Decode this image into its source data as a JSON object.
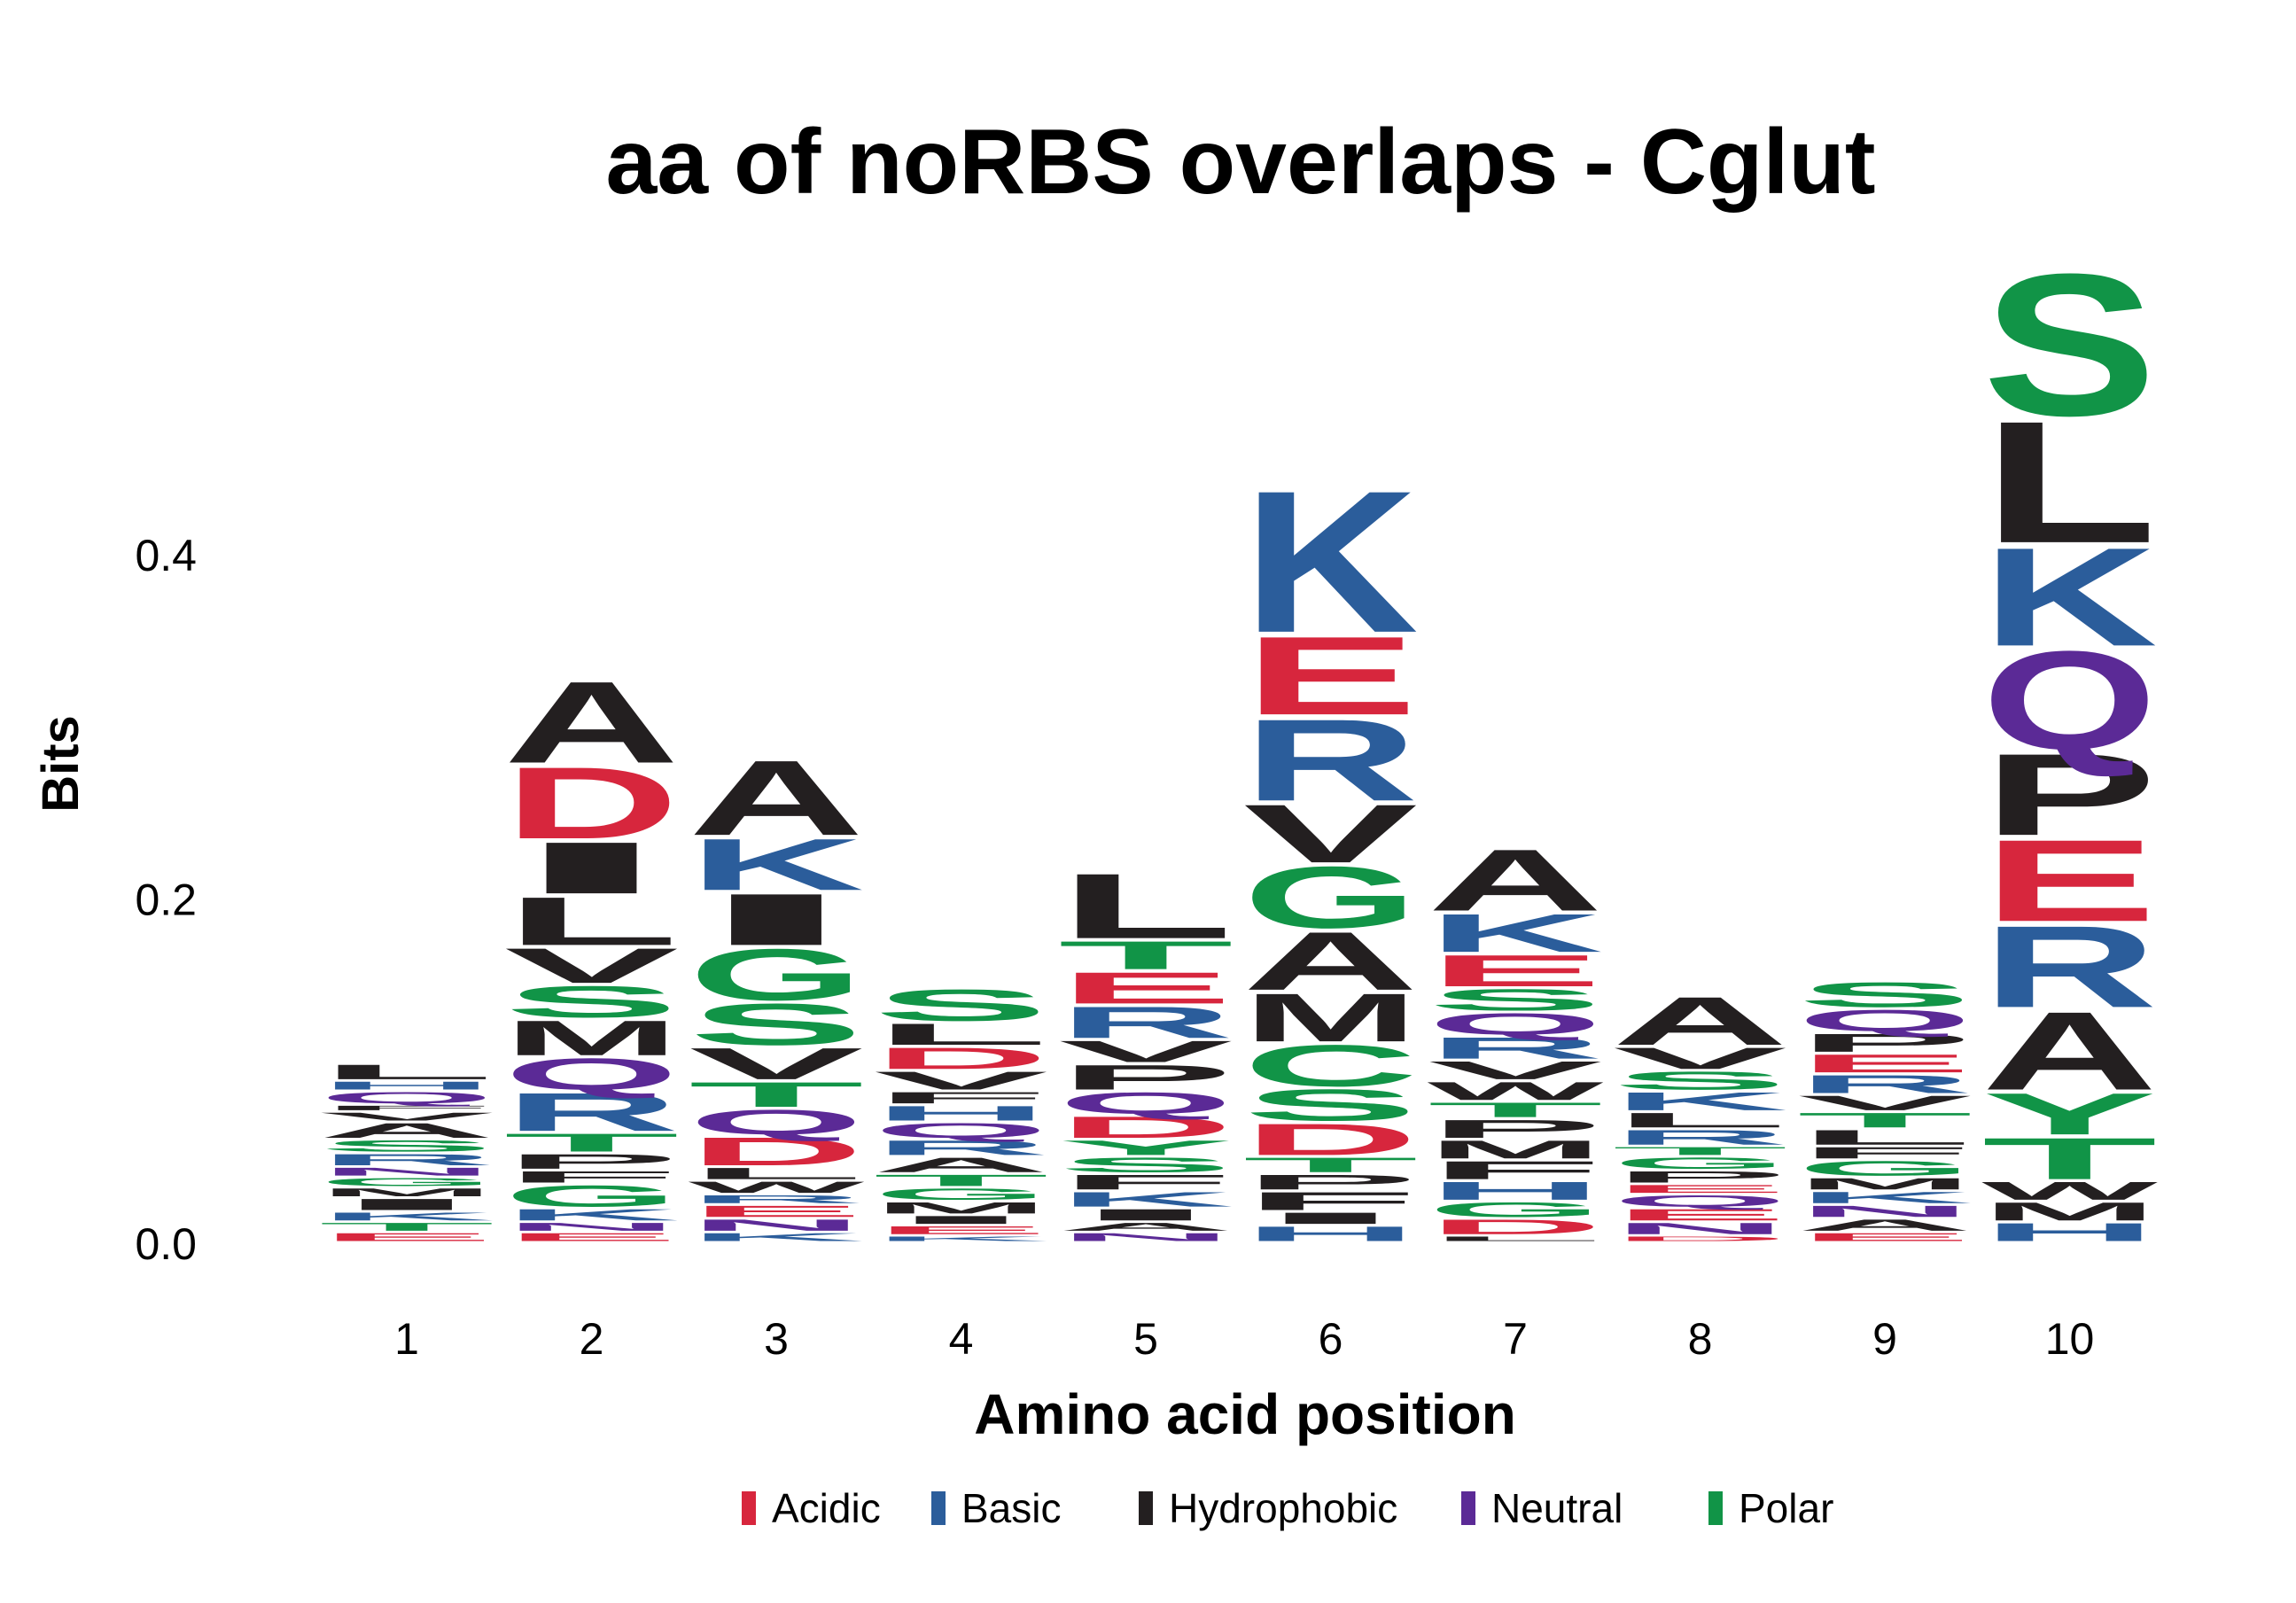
{
  "chart_data": {
    "type": "sequence-logo",
    "title": "aa of noRBS overlaps - Cglut",
    "xlabel": "Amino acid position",
    "ylabel": "Bits",
    "x": [
      1,
      2,
      3,
      4,
      5,
      6,
      7,
      8,
      9,
      10
    ],
    "y_ticks": [
      "0.0",
      "0.2",
      "0.4"
    ],
    "ylim": [
      0,
      0.55
    ],
    "legend_placement": "bottom",
    "legend": [
      {
        "name": "Acidic",
        "color": "#d7263d"
      },
      {
        "name": "Basic",
        "color": "#2b5d9b"
      },
      {
        "name": "Hydrophobic",
        "color": "#231f20"
      },
      {
        "name": "Neutral",
        "color": "#5b2a96"
      },
      {
        "name": "Polar",
        "color": "#119447"
      }
    ],
    "class_colors": {
      "acidic": "#d7263d",
      "basic": "#2b5d9b",
      "hydrophobic": "#231f20",
      "neutral": "#5b2a96",
      "polar": "#119447"
    },
    "positions": [
      {
        "pos": 1,
        "stack": [
          {
            "aa": "E",
            "bits": 0.006
          },
          {
            "aa": "T",
            "bits": 0.006
          },
          {
            "aa": "K",
            "bits": 0.006
          },
          {
            "aa": "I",
            "bits": 0.008
          },
          {
            "aa": "M",
            "bits": 0.006
          },
          {
            "aa": "G",
            "bits": 0.006
          },
          {
            "aa": "N",
            "bits": 0.006
          },
          {
            "aa": "R",
            "bits": 0.008
          },
          {
            "aa": "S",
            "bits": 0.008
          },
          {
            "aa": "A",
            "bits": 0.01
          },
          {
            "aa": "V",
            "bits": 0.006
          },
          {
            "aa": "F",
            "bits": 0.004
          },
          {
            "aa": "Q",
            "bits": 0.008
          },
          {
            "aa": "H",
            "bits": 0.006
          },
          {
            "aa": "L",
            "bits": 0.01
          }
        ]
      },
      {
        "pos": 2,
        "stack": [
          {
            "aa": "E",
            "bits": 0.006
          },
          {
            "aa": "N",
            "bits": 0.006
          },
          {
            "aa": "K",
            "bits": 0.008
          },
          {
            "aa": "G",
            "bits": 0.014
          },
          {
            "aa": "F",
            "bits": 0.008
          },
          {
            "aa": "P",
            "bits": 0.01
          },
          {
            "aa": "T",
            "bits": 0.012
          },
          {
            "aa": "R",
            "bits": 0.024
          },
          {
            "aa": "Q",
            "bits": 0.02
          },
          {
            "aa": "M",
            "bits": 0.022
          },
          {
            "aa": "S",
            "bits": 0.02
          },
          {
            "aa": "V",
            "bits": 0.022
          },
          {
            "aa": "L",
            "bits": 0.03
          },
          {
            "aa": "I",
            "bits": 0.032
          },
          {
            "aa": "D",
            "bits": 0.044
          },
          {
            "aa": "A",
            "bits": 0.05
          }
        ]
      },
      {
        "pos": 3,
        "stack": [
          {
            "aa": "K",
            "bits": 0.006
          },
          {
            "aa": "N",
            "bits": 0.008
          },
          {
            "aa": "E",
            "bits": 0.008
          },
          {
            "aa": "R",
            "bits": 0.006
          },
          {
            "aa": "W",
            "bits": 0.008
          },
          {
            "aa": "L",
            "bits": 0.008
          },
          {
            "aa": "D",
            "bits": 0.018
          },
          {
            "aa": "Q",
            "bits": 0.016
          },
          {
            "aa": "T",
            "bits": 0.016
          },
          {
            "aa": "V",
            "bits": 0.02
          },
          {
            "aa": "S",
            "bits": 0.026
          },
          {
            "aa": "G",
            "bits": 0.032
          },
          {
            "aa": "I",
            "bits": 0.032
          },
          {
            "aa": "K",
            "bits": 0.032
          },
          {
            "aa": "A",
            "bits": 0.046
          }
        ]
      },
      {
        "pos": 4,
        "stack": [
          {
            "aa": "K",
            "bits": 0.004
          },
          {
            "aa": "E",
            "bits": 0.006
          },
          {
            "aa": "I",
            "bits": 0.006
          },
          {
            "aa": "M",
            "bits": 0.008
          },
          {
            "aa": "G",
            "bits": 0.008
          },
          {
            "aa": "T",
            "bits": 0.008
          },
          {
            "aa": "A",
            "bits": 0.01
          },
          {
            "aa": "R",
            "bits": 0.01
          },
          {
            "aa": "Q",
            "bits": 0.01
          },
          {
            "aa": "H",
            "bits": 0.01
          },
          {
            "aa": "F",
            "bits": 0.008
          },
          {
            "aa": "V",
            "bits": 0.012
          },
          {
            "aa": "D",
            "bits": 0.014
          },
          {
            "aa": "L",
            "bits": 0.014
          },
          {
            "aa": "S",
            "bits": 0.02
          }
        ]
      },
      {
        "pos": 5,
        "stack": [
          {
            "aa": "N",
            "bits": 0.006
          },
          {
            "aa": "A",
            "bits": 0.006
          },
          {
            "aa": "I",
            "bits": 0.008
          },
          {
            "aa": "K",
            "bits": 0.01
          },
          {
            "aa": "F",
            "bits": 0.01
          },
          {
            "aa": "S",
            "bits": 0.01
          },
          {
            "aa": "Y",
            "bits": 0.01
          },
          {
            "aa": "D",
            "bits": 0.014
          },
          {
            "aa": "Q",
            "bits": 0.014
          },
          {
            "aa": "P",
            "bits": 0.016
          },
          {
            "aa": "V",
            "bits": 0.014
          },
          {
            "aa": "R",
            "bits": 0.02
          },
          {
            "aa": "E",
            "bits": 0.02
          },
          {
            "aa": "T",
            "bits": 0.018
          },
          {
            "aa": "L",
            "bits": 0.04
          }
        ]
      },
      {
        "pos": 6,
        "stack": [
          {
            "aa": "H",
            "bits": 0.01
          },
          {
            "aa": "I",
            "bits": 0.008
          },
          {
            "aa": "F",
            "bits": 0.012
          },
          {
            "aa": "P",
            "bits": 0.01
          },
          {
            "aa": "T",
            "bits": 0.01
          },
          {
            "aa": "D",
            "bits": 0.02
          },
          {
            "aa": "S",
            "bits": 0.02
          },
          {
            "aa": "C",
            "bits": 0.026
          },
          {
            "aa": "M",
            "bits": 0.03
          },
          {
            "aa": "A",
            "bits": 0.036
          },
          {
            "aa": "G",
            "bits": 0.038
          },
          {
            "aa": "V",
            "bits": 0.036
          },
          {
            "aa": "R",
            "bits": 0.05
          },
          {
            "aa": "E",
            "bits": 0.048
          },
          {
            "aa": "K",
            "bits": 0.086
          }
        ]
      },
      {
        "pos": 7,
        "stack": [
          {
            "aa": "L",
            "bits": 0.004
          },
          {
            "aa": "D",
            "bits": 0.01
          },
          {
            "aa": "G",
            "bits": 0.01
          },
          {
            "aa": "H",
            "bits": 0.012
          },
          {
            "aa": "F",
            "bits": 0.012
          },
          {
            "aa": "M",
            "bits": 0.012
          },
          {
            "aa": "P",
            "bits": 0.012
          },
          {
            "aa": "T",
            "bits": 0.01
          },
          {
            "aa": "W",
            "bits": 0.012
          },
          {
            "aa": "V",
            "bits": 0.012
          },
          {
            "aa": "R",
            "bits": 0.014
          },
          {
            "aa": "Q",
            "bits": 0.014
          },
          {
            "aa": "S",
            "bits": 0.014
          },
          {
            "aa": "E",
            "bits": 0.02
          },
          {
            "aa": "K",
            "bits": 0.024
          },
          {
            "aa": "A",
            "bits": 0.038
          }
        ]
      },
      {
        "pos": 8,
        "stack": [
          {
            "aa": "D",
            "bits": 0.004
          },
          {
            "aa": "N",
            "bits": 0.008
          },
          {
            "aa": "E",
            "bits": 0.008
          },
          {
            "aa": "Q",
            "bits": 0.008
          },
          {
            "aa": "E",
            "bits": 0.006
          },
          {
            "aa": "P",
            "bits": 0.008
          },
          {
            "aa": "G",
            "bits": 0.008
          },
          {
            "aa": "T",
            "bits": 0.006
          },
          {
            "aa": "R",
            "bits": 0.01
          },
          {
            "aa": "L",
            "bits": 0.01
          },
          {
            "aa": "K",
            "bits": 0.012
          },
          {
            "aa": "S",
            "bits": 0.012
          },
          {
            "aa": "V",
            "bits": 0.014
          },
          {
            "aa": "A",
            "bits": 0.03
          }
        ]
      },
      {
        "pos": 9,
        "stack": [
          {
            "aa": "E",
            "bits": 0.006
          },
          {
            "aa": "A",
            "bits": 0.008
          },
          {
            "aa": "N",
            "bits": 0.008
          },
          {
            "aa": "K",
            "bits": 0.008
          },
          {
            "aa": "M",
            "bits": 0.008
          },
          {
            "aa": "G",
            "bits": 0.01
          },
          {
            "aa": "F",
            "bits": 0.008
          },
          {
            "aa": "L",
            "bits": 0.01
          },
          {
            "aa": "T",
            "bits": 0.01
          },
          {
            "aa": "V",
            "bits": 0.01
          },
          {
            "aa": "R",
            "bits": 0.012
          },
          {
            "aa": "E",
            "bits": 0.012
          },
          {
            "aa": "P",
            "bits": 0.012
          },
          {
            "aa": "Q",
            "bits": 0.014
          },
          {
            "aa": "S",
            "bits": 0.016
          }
        ]
      },
      {
        "pos": 10,
        "stack": [
          {
            "aa": "H",
            "bits": 0.012
          },
          {
            "aa": "M",
            "bits": 0.012
          },
          {
            "aa": "W",
            "bits": 0.012
          },
          {
            "aa": "T",
            "bits": 0.026
          },
          {
            "aa": "Y",
            "bits": 0.026
          },
          {
            "aa": "A",
            "bits": 0.048
          },
          {
            "aa": "R",
            "bits": 0.05
          },
          {
            "aa": "E",
            "bits": 0.05
          },
          {
            "aa": "P",
            "bits": 0.05
          },
          {
            "aa": "Q",
            "bits": 0.06
          },
          {
            "aa": "K",
            "bits": 0.06
          },
          {
            "aa": "L",
            "bits": 0.074
          },
          {
            "aa": "S",
            "bits": 0.086
          }
        ]
      }
    ]
  }
}
